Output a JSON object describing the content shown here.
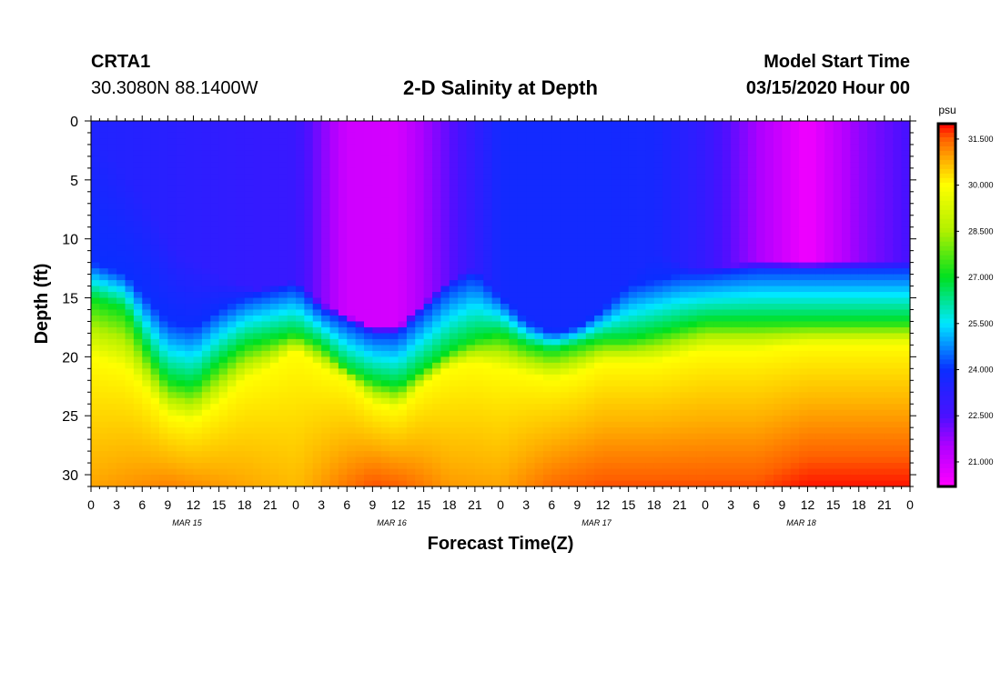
{
  "header": {
    "station": "CRTA1",
    "coords": "30.3080N 88.1400W",
    "title": "2-D Salinity at Depth",
    "model_start_label": "Model Start Time",
    "model_start_value": "03/15/2020 Hour 00"
  },
  "chart_data": {
    "type": "heatmap",
    "title": "2-D Salinity at Depth",
    "xlabel": "Forecast Time(Z)",
    "ylabel": "Depth (ft)",
    "x_range_hours": [
      0,
      96
    ],
    "x_ticks": [
      {
        "hour": 0,
        "label": "0"
      },
      {
        "hour": 3,
        "label": "3"
      },
      {
        "hour": 6,
        "label": "6"
      },
      {
        "hour": 9,
        "label": "9"
      },
      {
        "hour": 12,
        "label": "12"
      },
      {
        "hour": 15,
        "label": "15"
      },
      {
        "hour": 18,
        "label": "18"
      },
      {
        "hour": 21,
        "label": "21"
      },
      {
        "hour": 24,
        "label": "0"
      },
      {
        "hour": 27,
        "label": "3"
      },
      {
        "hour": 30,
        "label": "6"
      },
      {
        "hour": 33,
        "label": "9"
      },
      {
        "hour": 36,
        "label": "12"
      },
      {
        "hour": 39,
        "label": "15"
      },
      {
        "hour": 42,
        "label": "18"
      },
      {
        "hour": 45,
        "label": "21"
      },
      {
        "hour": 48,
        "label": "0"
      },
      {
        "hour": 51,
        "label": "3"
      },
      {
        "hour": 54,
        "label": "6"
      },
      {
        "hour": 57,
        "label": "9"
      },
      {
        "hour": 60,
        "label": "12"
      },
      {
        "hour": 63,
        "label": "15"
      },
      {
        "hour": 66,
        "label": "18"
      },
      {
        "hour": 69,
        "label": "21"
      },
      {
        "hour": 72,
        "label": "0"
      },
      {
        "hour": 75,
        "label": "3"
      },
      {
        "hour": 78,
        "label": "6"
      },
      {
        "hour": 81,
        "label": "9"
      },
      {
        "hour": 84,
        "label": "12"
      },
      {
        "hour": 87,
        "label": "15"
      },
      {
        "hour": 90,
        "label": "18"
      },
      {
        "hour": 93,
        "label": "21"
      },
      {
        "hour": 96,
        "label": "0"
      }
    ],
    "date_labels": [
      {
        "hour": 12,
        "label": "MAR 15"
      },
      {
        "hour": 36,
        "label": "MAR 16"
      },
      {
        "hour": 60,
        "label": "MAR 17"
      },
      {
        "hour": 84,
        "label": "MAR 18"
      }
    ],
    "y_range_ft": [
      0,
      31
    ],
    "y_ticks": [
      0,
      5,
      10,
      15,
      20,
      25,
      30
    ],
    "colorbar": {
      "unit": "psu",
      "range": [
        20.2,
        32.0
      ],
      "ticks": [
        "31.500",
        "30.000",
        "28.500",
        "27.000",
        "25.500",
        "24.000",
        "22.500",
        "21.000"
      ],
      "stops": [
        {
          "v": 20.2,
          "c": "#ff00ff"
        },
        {
          "v": 21.5,
          "c": "#b000ff"
        },
        {
          "v": 22.5,
          "c": "#4a10ff"
        },
        {
          "v": 24.0,
          "c": "#0a2eff"
        },
        {
          "v": 25.5,
          "c": "#00e8ff"
        },
        {
          "v": 27.0,
          "c": "#00e020"
        },
        {
          "v": 28.5,
          "c": "#b0f000"
        },
        {
          "v": 30.0,
          "c": "#ffff00"
        },
        {
          "v": 30.8,
          "c": "#ffb000"
        },
        {
          "v": 31.5,
          "c": "#ff6000"
        },
        {
          "v": 32.0,
          "c": "#ff0000"
        }
      ]
    },
    "salinity_model": {
      "surface_psu_by_hour": [
        [
          0,
          23.5
        ],
        [
          12,
          23.2
        ],
        [
          24,
          22.9
        ],
        [
          30,
          21.0
        ],
        [
          36,
          20.9
        ],
        [
          42,
          22.3
        ],
        [
          48,
          23.8
        ],
        [
          54,
          23.8
        ],
        [
          60,
          23.8
        ],
        [
          66,
          23.7
        ],
        [
          72,
          23.0
        ],
        [
          78,
          21.6
        ],
        [
          84,
          20.4
        ],
        [
          90,
          21.8
        ],
        [
          96,
          22.6
        ]
      ],
      "upper_depth_ft_by_hour": [
        [
          0,
          1
        ],
        [
          6,
          6
        ],
        [
          10,
          11
        ],
        [
          15,
          13
        ],
        [
          18,
          14
        ],
        [
          24,
          15
        ],
        [
          30,
          17
        ],
        [
          36,
          18
        ],
        [
          42,
          15
        ],
        [
          48,
          18
        ],
        [
          54,
          19
        ],
        [
          60,
          16
        ],
        [
          66,
          11
        ],
        [
          72,
          13
        ],
        [
          78,
          15
        ],
        [
          84,
          15
        ],
        [
          90,
          14
        ],
        [
          96,
          14
        ]
      ],
      "isohaline_24_ft_by_hour": [
        [
          0,
          12
        ],
        [
          4,
          13
        ],
        [
          9,
          17
        ],
        [
          12,
          17.5
        ],
        [
          15,
          16
        ],
        [
          18,
          15
        ],
        [
          24,
          14
        ],
        [
          27,
          16
        ],
        [
          33,
          18
        ],
        [
          36,
          18
        ],
        [
          39,
          16
        ],
        [
          42,
          14
        ],
        [
          45,
          13
        ],
        [
          48,
          15
        ],
        [
          51,
          17
        ],
        [
          54,
          18
        ],
        [
          57,
          17.5
        ],
        [
          60,
          16
        ],
        [
          63,
          14
        ],
        [
          66,
          13.5
        ],
        [
          69,
          13
        ],
        [
          72,
          13
        ],
        [
          78,
          12.5
        ],
        [
          84,
          12.5
        ],
        [
          90,
          12.5
        ],
        [
          96,
          12.5
        ]
      ],
      "isohaline_27_ft_by_hour": [
        [
          0,
          15
        ],
        [
          4,
          16
        ],
        [
          7,
          20
        ],
        [
          9,
          22
        ],
        [
          12,
          22.5
        ],
        [
          15,
          20.5
        ],
        [
          18,
          19
        ],
        [
          21,
          18.5
        ],
        [
          24,
          18
        ],
        [
          27,
          19
        ],
        [
          30,
          21
        ],
        [
          33,
          22
        ],
        [
          36,
          22.5
        ],
        [
          39,
          21
        ],
        [
          42,
          19.5
        ],
        [
          45,
          18.5
        ],
        [
          48,
          18
        ],
        [
          51,
          19
        ],
        [
          54,
          19.5
        ],
        [
          57,
          19
        ],
        [
          60,
          18.5
        ],
        [
          63,
          18.5
        ],
        [
          66,
          18
        ],
        [
          69,
          17.5
        ],
        [
          72,
          17
        ],
        [
          78,
          17
        ],
        [
          84,
          17
        ],
        [
          90,
          17
        ],
        [
          96,
          17
        ]
      ],
      "isohaline_30_ft_by_hour": [
        [
          0,
          20
        ],
        [
          4,
          21
        ],
        [
          6,
          22.5
        ],
        [
          9,
          25
        ],
        [
          12,
          25.5
        ],
        [
          15,
          24
        ],
        [
          18,
          22
        ],
        [
          21,
          21
        ],
        [
          24,
          19.5
        ],
        [
          27,
          21
        ],
        [
          30,
          22
        ],
        [
          33,
          24
        ],
        [
          36,
          24.5
        ],
        [
          39,
          22.5
        ],
        [
          42,
          21
        ],
        [
          45,
          20.5
        ],
        [
          48,
          21
        ],
        [
          51,
          21.5
        ],
        [
          54,
          22
        ],
        [
          57,
          21.5
        ],
        [
          60,
          20.5
        ],
        [
          63,
          20.5
        ],
        [
          66,
          20.5
        ],
        [
          69,
          20
        ],
        [
          72,
          19.5
        ],
        [
          78,
          19.5
        ],
        [
          84,
          19
        ],
        [
          90,
          19
        ],
        [
          96,
          19
        ]
      ],
      "bottom_psu_by_hour": [
        [
          0,
          30.9
        ],
        [
          9,
          31.2
        ],
        [
          12,
          31.1
        ],
        [
          18,
          30.9
        ],
        [
          24,
          30.7
        ],
        [
          33,
          31.6
        ],
        [
          36,
          31.5
        ],
        [
          42,
          31.0
        ],
        [
          48,
          30.9
        ],
        [
          54,
          31.4
        ],
        [
          60,
          31.6
        ],
        [
          66,
          31.6
        ],
        [
          72,
          31.6
        ],
        [
          78,
          31.6
        ],
        [
          84,
          31.9
        ],
        [
          90,
          31.9
        ],
        [
          96,
          31.9
        ]
      ]
    }
  }
}
